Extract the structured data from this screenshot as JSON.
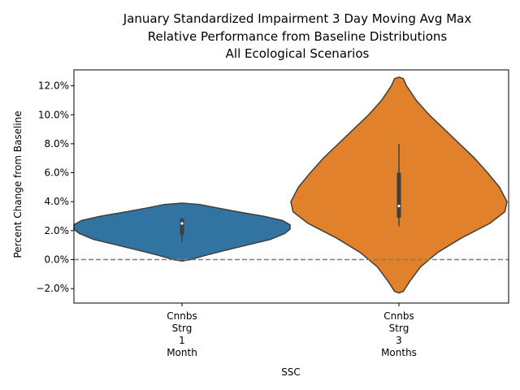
{
  "chart_data": {
    "type": "violin",
    "title_lines": [
      "January Standardized Impairment 3 Day Moving Avg Max",
      "Relative Performance from Baseline Distributions",
      "All Ecological Scenarios"
    ],
    "xlabel": "SSC",
    "ylabel": "Percent Change from Baseline",
    "ylim": [
      -3.0,
      13.1
    ],
    "yticks": [
      -2.0,
      0.0,
      2.0,
      4.0,
      6.0,
      8.0,
      10.0,
      12.0
    ],
    "ytick_labels": [
      "−2.0%",
      "0.0%",
      "2.0%",
      "4.0%",
      "6.0%",
      "8.0%",
      "10.0%",
      "12.0%"
    ],
    "reference_line": 0.0,
    "categories": [
      {
        "label_lines": [
          "Cnnbs",
          "Strg",
          "1",
          "Month"
        ]
      },
      {
        "label_lines": [
          "Cnnbs",
          "Strg",
          "3",
          "Months"
        ]
      }
    ],
    "violins": [
      {
        "color": "#3274a1",
        "ymin": -0.1,
        "ymax": 3.9,
        "profile": [
          [
            -0.1,
            0.0
          ],
          [
            0.0,
            0.08
          ],
          [
            0.3,
            0.22
          ],
          [
            0.6,
            0.38
          ],
          [
            1.0,
            0.6
          ],
          [
            1.4,
            0.82
          ],
          [
            1.8,
            0.95
          ],
          [
            2.1,
            1.0
          ],
          [
            2.4,
            1.0
          ],
          [
            2.7,
            0.93
          ],
          [
            3.0,
            0.75
          ],
          [
            3.3,
            0.52
          ],
          [
            3.6,
            0.3
          ],
          [
            3.8,
            0.17
          ],
          [
            3.9,
            0.0
          ]
        ],
        "whisker": [
          1.2,
          2.9
        ],
        "box": [
          1.7,
          2.8
        ],
        "median": 2.5
      },
      {
        "color": "#e1812c",
        "ymin": -2.3,
        "ymax": 12.6,
        "profile": [
          [
            -2.3,
            0.0
          ],
          [
            -2.2,
            0.04
          ],
          [
            -1.5,
            0.1
          ],
          [
            -0.5,
            0.2
          ],
          [
            0.5,
            0.36
          ],
          [
            1.5,
            0.58
          ],
          [
            2.5,
            0.84
          ],
          [
            3.3,
            0.98
          ],
          [
            4.0,
            1.0
          ],
          [
            5.0,
            0.93
          ],
          [
            6.0,
            0.82
          ],
          [
            7.0,
            0.7
          ],
          [
            8.0,
            0.56
          ],
          [
            9.0,
            0.42
          ],
          [
            10.0,
            0.28
          ],
          [
            11.0,
            0.16
          ],
          [
            12.0,
            0.07
          ],
          [
            12.5,
            0.04
          ],
          [
            12.6,
            0.0
          ]
        ],
        "whisker": [
          2.3,
          8.0
        ],
        "box": [
          2.9,
          6.0
        ],
        "median": 3.7
      }
    ],
    "grid": false
  }
}
